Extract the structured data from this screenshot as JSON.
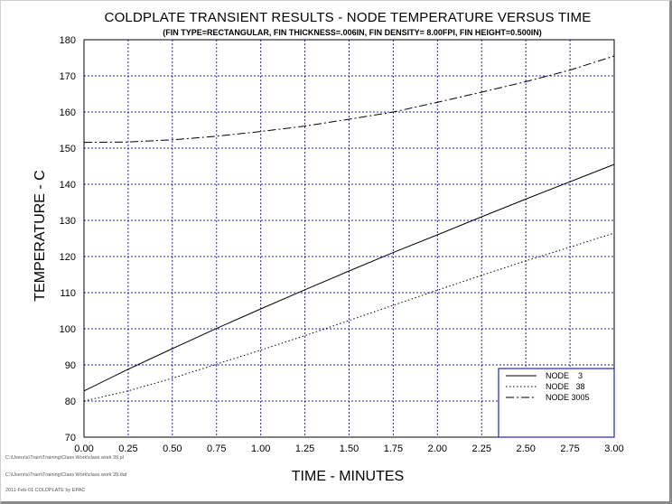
{
  "chart_data": {
    "type": "line",
    "title": "COLDPLATE TRANSIENT RESULTS - NODE TEMPERATURE VERSUS TIME",
    "subtitle": "(FIN TYPE=RECTANGULAR, FIN THICKNESS=.006IN, FIN DENSITY= 8.00FPI, FIN HEIGHT=0.500IN)",
    "xlabel": "TIME - MINUTES",
    "ylabel": "TEMPERATURE - C",
    "xlim": [
      0,
      3
    ],
    "ylim": [
      70,
      180
    ],
    "x_ticks": [
      "0.00",
      "0.25",
      "0.50",
      "0.75",
      "1.00",
      "1.25",
      "1.50",
      "1.75",
      "2.00",
      "2.25",
      "2.50",
      "2.75",
      "3.00"
    ],
    "y_ticks": [
      "70",
      "80",
      "90",
      "100",
      "110",
      "120",
      "130",
      "140",
      "150",
      "160",
      "170",
      "180"
    ],
    "grid": true,
    "legend_position": "bottom-right",
    "series": [
      {
        "name": "NODE    3",
        "style": "solid",
        "x": [
          0,
          0.25,
          0.5,
          0.75,
          1.0,
          1.25,
          1.5,
          1.75,
          2.0,
          2.25,
          2.5,
          2.75,
          3.0
        ],
        "values": [
          82.8,
          88.8,
          94.5,
          100.1,
          105.5,
          110.8,
          116.0,
          121.1,
          126.0,
          131.0,
          135.9,
          140.7,
          145.5
        ]
      },
      {
        "name": "NODE   38",
        "style": "dotted",
        "x": [
          0,
          0.25,
          0.5,
          0.75,
          1.0,
          1.25,
          1.5,
          1.75,
          2.0,
          2.25,
          2.5,
          2.75,
          3.0
        ],
        "values": [
          80.0,
          82.8,
          86.3,
          90.2,
          94.1,
          98.1,
          102.3,
          106.5,
          110.7,
          114.8,
          118.8,
          122.6,
          126.5
        ]
      },
      {
        "name": "NODE 3005",
        "style": "dashdot",
        "x": [
          0,
          0.25,
          0.5,
          0.75,
          1.0,
          1.25,
          1.5,
          1.75,
          2.0,
          2.25,
          2.5,
          2.75,
          3.0
        ],
        "values": [
          151.6,
          151.7,
          152.3,
          153.3,
          154.6,
          156.1,
          158.0,
          160.0,
          162.7,
          165.5,
          168.4,
          171.6,
          175.5
        ]
      }
    ]
  },
  "footer": {
    "line1": "C:\\Users\\s\\Train\\Training\\Class Work\\class work 39.pl",
    "line2": "C:\\Users\\s\\Train\\Training\\Class Work\\class work 39.dat",
    "line3": "2011-Feb-01 COLDPLATE by EPAC"
  }
}
